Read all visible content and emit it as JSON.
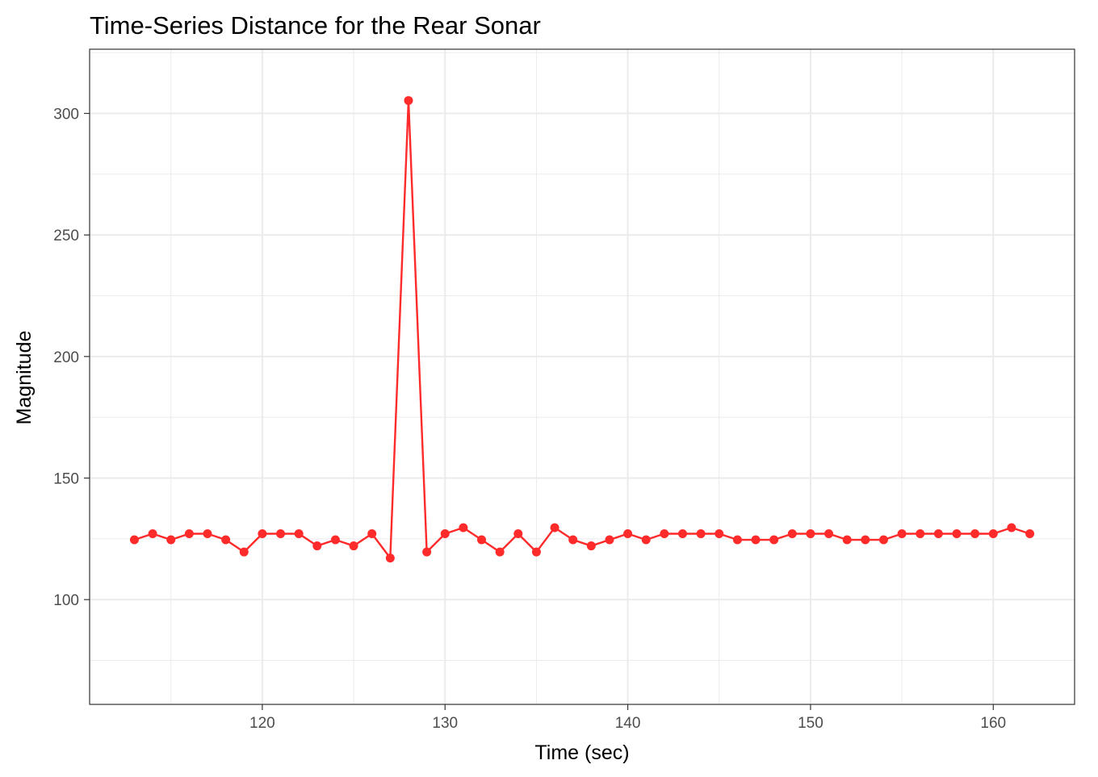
{
  "chart_data": {
    "type": "line",
    "title": "Time-Series Distance for the Rear Sonar",
    "xlabel": "Time (sec)",
    "ylabel": "Magnitude",
    "xlim": [
      110.55,
      164.45
    ],
    "ylim": [
      56.9,
      326.4
    ],
    "x_ticks": [
      120,
      130,
      140,
      150,
      160
    ],
    "y_ticks": [
      100,
      150,
      200,
      250,
      300
    ],
    "x_tick_labels": [
      "120",
      "130",
      "140",
      "150",
      "160"
    ],
    "y_tick_labels": [
      "100",
      "150",
      "200",
      "250",
      "300"
    ],
    "grid": true,
    "legend": "none",
    "series": [
      {
        "color": "#ff2a2a",
        "marker": "circle",
        "x": [
          113,
          114,
          115,
          116,
          117,
          118,
          119,
          120,
          121,
          122,
          123,
          124,
          125,
          126,
          127,
          128,
          129,
          130,
          131,
          132,
          133,
          134,
          135,
          136,
          137,
          138,
          139,
          140,
          141,
          142,
          143,
          144,
          145,
          146,
          147,
          148,
          149,
          150,
          151,
          152,
          153,
          154,
          155,
          156,
          157,
          158,
          159,
          160,
          161,
          162
        ],
        "y": [
          124.6,
          127.1,
          124.6,
          127.1,
          127.1,
          124.6,
          119.6,
          127.1,
          127.1,
          127.1,
          122.1,
          124.6,
          122.1,
          127.1,
          117.1,
          305.3,
          119.6,
          127.1,
          129.6,
          124.6,
          119.6,
          127.1,
          119.6,
          129.6,
          124.6,
          122.1,
          124.6,
          127.1,
          124.6,
          127.1,
          127.1,
          127.1,
          127.1,
          124.6,
          124.6,
          124.6,
          127.1,
          127.1,
          127.1,
          124.6,
          124.6,
          124.6,
          127.1,
          127.1,
          127.1,
          127.1,
          127.1,
          127.1,
          129.6,
          127.1
        ]
      }
    ]
  }
}
